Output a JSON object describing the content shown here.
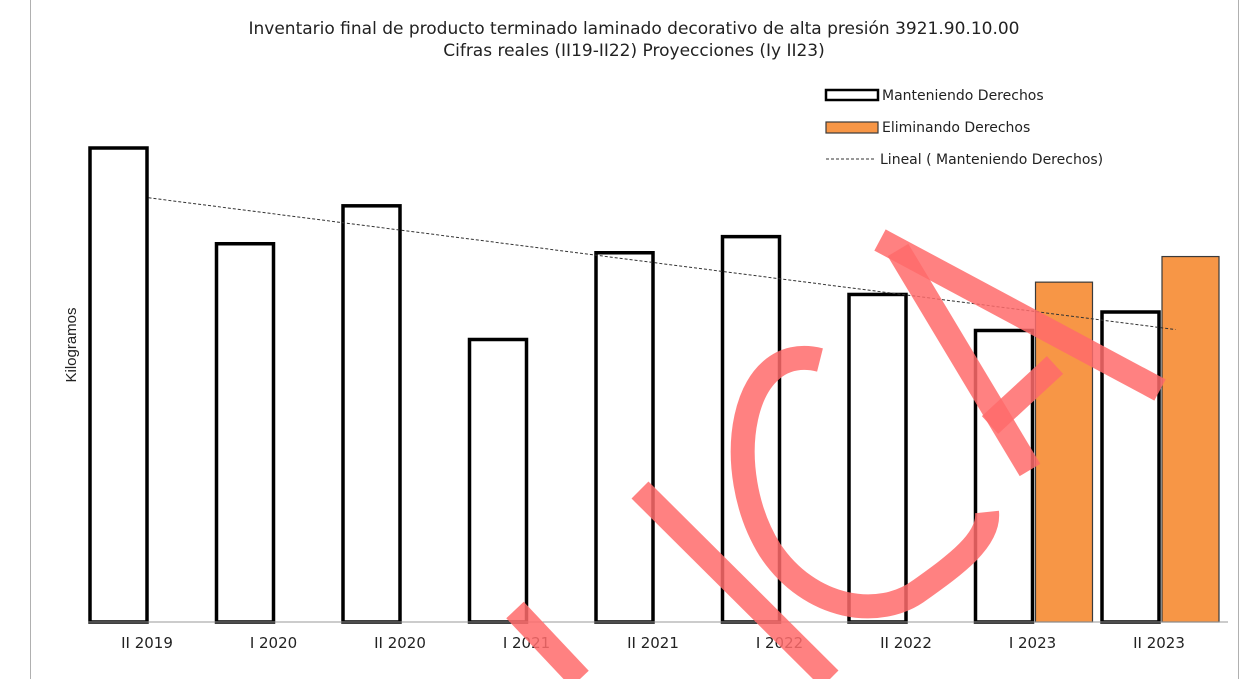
{
  "chart_data": {
    "type": "bar",
    "title": "Inventario final de producto terminado laminado decorativo de alta presión 3921.90.10.00",
    "subtitle": "Cifras reales (II19-II22) Proyecciones (Iy II23)",
    "xlabel": "",
    "ylabel": "Kilogramos",
    "ylim": [
      0,
      100
    ],
    "grid": false,
    "legend_position": "top-right",
    "categories": [
      "II 2019",
      "I 2020",
      "II 2020",
      "I 2021",
      "II 2021",
      "I 2022",
      "II 2022",
      "I 2023",
      "II 2023"
    ],
    "series": [
      {
        "name": "Manteniendo Derechos",
        "color": "#ffffff",
        "values": [
          100,
          79.8,
          87.8,
          59.6,
          77.9,
          81.3,
          69.1,
          61.5,
          65.4
        ]
      },
      {
        "name": "Eliminando Derechos",
        "color": "#f79646",
        "values": [
          null,
          null,
          null,
          null,
          null,
          null,
          null,
          71.7,
          77.1
        ]
      }
    ],
    "trendline": {
      "name": "Lineal ( Manteniendo Derechos)",
      "series": "Manteniendo Derechos",
      "type": "linear",
      "start_value": 89.5,
      "end_value": 61.7
    }
  },
  "watermark_color": "#ff6b6b"
}
